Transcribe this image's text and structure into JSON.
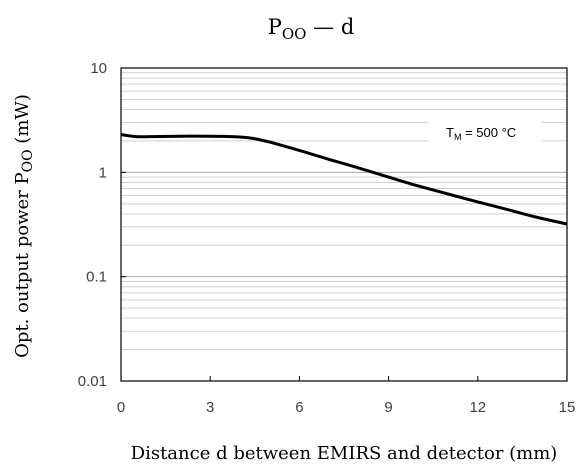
{
  "chart_data": {
    "type": "line",
    "title": "P",
    "title_sub": "OO",
    "title_suffix": " — d",
    "xlabel": "Distance d between EMIRS and detector (mm)",
    "ylabel": "Opt. output power P",
    "ylabel_sub": "OO",
    "ylabel_suffix": " (mW)",
    "xlim": [
      0,
      15
    ],
    "ylim": [
      0.01,
      10
    ],
    "yscale": "log",
    "grid": true,
    "x_ticks": [
      "0",
      "3",
      "6",
      "9",
      "12",
      "15"
    ],
    "y_ticks": [
      "0.01",
      "0.1",
      "1",
      "10"
    ],
    "annotation": {
      "main": "T",
      "sub": "M",
      "rest": " = 500 °C"
    },
    "series": [
      {
        "color": "#000000",
        "x": [
          0,
          0.5,
          1,
          2,
          3,
          3.5,
          4,
          4.5,
          5,
          5.5,
          6,
          6.5,
          7,
          8,
          9,
          10,
          11,
          12,
          13,
          14,
          15
        ],
        "y": [
          2.3,
          2.2,
          2.2,
          2.22,
          2.22,
          2.21,
          2.18,
          2.1,
          1.95,
          1.78,
          1.62,
          1.47,
          1.33,
          1.1,
          0.9,
          0.74,
          0.62,
          0.52,
          0.44,
          0.37,
          0.32
        ]
      }
    ]
  }
}
